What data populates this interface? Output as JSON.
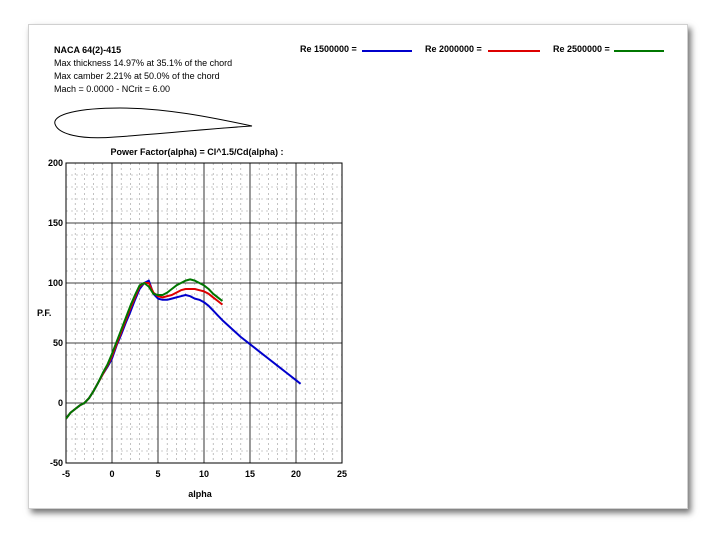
{
  "info": {
    "name": "NACA 64(2)-415",
    "thickness": "Max thickness 14.97% at 35.1% of the chord",
    "camber": "Max camber 2.21% at 50.0% of the chord",
    "mach": "Mach = 0.0000 - NCrit = 6.00"
  },
  "colors": {
    "re1500000": "#0000cc",
    "re2000000": "#dd0000",
    "re2500000": "#007700"
  },
  "chart_data": {
    "type": "line",
    "title": "Power Factor(alpha) = Cl^1.5/Cd(alpha) :",
    "xlabel": "alpha",
    "ylabel": "P.F.",
    "xlim": [
      -5,
      25
    ],
    "ylim": [
      -50,
      200
    ],
    "x_ticks": [
      "-5",
      "0",
      "5",
      "10",
      "15",
      "20",
      "25"
    ],
    "y_ticks": [
      "200",
      "150",
      "100",
      "50",
      "0",
      "-50"
    ],
    "grid": true,
    "legend_position": "top",
    "series": [
      {
        "name": "Re 1500000 =",
        "color": "#0000cc",
        "points": [
          [
            -5,
            -13
          ],
          [
            -4.5,
            -8
          ],
          [
            -4,
            -5
          ],
          [
            -3.5,
            -2
          ],
          [
            -3,
            0
          ],
          [
            -2.5,
            4
          ],
          [
            -2,
            10
          ],
          [
            -1.5,
            17
          ],
          [
            -1,
            24
          ],
          [
            -0.5,
            30
          ],
          [
            0,
            37
          ],
          [
            0.5,
            48
          ],
          [
            1,
            57
          ],
          [
            1.5,
            67
          ],
          [
            2,
            76
          ],
          [
            2.5,
            86
          ],
          [
            3,
            95
          ],
          [
            3.5,
            100
          ],
          [
            4,
            102
          ],
          [
            4.5,
            91
          ],
          [
            5,
            87
          ],
          [
            5.5,
            86
          ],
          [
            6,
            86
          ],
          [
            6.5,
            87
          ],
          [
            7,
            88
          ],
          [
            7.5,
            89
          ],
          [
            8,
            90
          ],
          [
            8.5,
            89
          ],
          [
            9,
            87
          ],
          [
            9.5,
            86
          ],
          [
            10,
            84
          ],
          [
            10.5,
            81
          ],
          [
            11,
            77
          ],
          [
            11.5,
            73
          ],
          [
            12,
            69
          ],
          [
            13,
            62
          ],
          [
            14,
            55
          ],
          [
            15,
            49
          ],
          [
            16,
            43
          ],
          [
            17,
            37
          ],
          [
            18,
            31
          ],
          [
            19,
            25
          ],
          [
            20,
            19
          ],
          [
            20.5,
            16
          ]
        ]
      },
      {
        "name": "Re 2000000 =",
        "color": "#dd0000",
        "points": [
          [
            -5,
            -13
          ],
          [
            -4.5,
            -8
          ],
          [
            -4,
            -5
          ],
          [
            -3.5,
            -2
          ],
          [
            -3,
            0
          ],
          [
            -2.5,
            4
          ],
          [
            -2,
            10
          ],
          [
            -1.5,
            17
          ],
          [
            -1,
            24
          ],
          [
            -0.5,
            31
          ],
          [
            0,
            39
          ],
          [
            0.5,
            49
          ],
          [
            1,
            59
          ],
          [
            1.5,
            69
          ],
          [
            2,
            79
          ],
          [
            2.5,
            88
          ],
          [
            3,
            97
          ],
          [
            3.5,
            100
          ],
          [
            4,
            100
          ],
          [
            4.5,
            92
          ],
          [
            5,
            89
          ],
          [
            5.5,
            88
          ],
          [
            6,
            89
          ],
          [
            6.5,
            90
          ],
          [
            7,
            92
          ],
          [
            7.5,
            94
          ],
          [
            8,
            95
          ],
          [
            8.5,
            95
          ],
          [
            9,
            95
          ],
          [
            9.5,
            94
          ],
          [
            10,
            93
          ],
          [
            10.5,
            91
          ],
          [
            11,
            88
          ],
          [
            11.5,
            85
          ],
          [
            12,
            82
          ]
        ]
      },
      {
        "name": "Re 2500000 =",
        "color": "#007700",
        "points": [
          [
            -5,
            -13
          ],
          [
            -4.5,
            -8
          ],
          [
            -4,
            -5
          ],
          [
            -3.5,
            -2
          ],
          [
            -3,
            0
          ],
          [
            -2.5,
            4
          ],
          [
            -2,
            10
          ],
          [
            -1.5,
            17
          ],
          [
            -1,
            25
          ],
          [
            -0.5,
            32
          ],
          [
            0,
            41
          ],
          [
            0.5,
            51
          ],
          [
            1,
            61
          ],
          [
            1.5,
            71
          ],
          [
            2,
            81
          ],
          [
            2.5,
            90
          ],
          [
            3,
            98
          ],
          [
            3.5,
            100
          ],
          [
            4,
            97
          ],
          [
            4.5,
            91
          ],
          [
            5,
            90
          ],
          [
            5.5,
            90
          ],
          [
            6,
            92
          ],
          [
            6.5,
            95
          ],
          [
            7,
            98
          ],
          [
            7.5,
            100
          ],
          [
            8,
            102
          ],
          [
            8.5,
            103
          ],
          [
            9,
            102
          ],
          [
            9.5,
            100
          ],
          [
            10,
            98
          ],
          [
            10.5,
            95
          ],
          [
            11,
            91
          ],
          [
            11.5,
            88
          ],
          [
            12,
            85
          ]
        ]
      }
    ]
  }
}
